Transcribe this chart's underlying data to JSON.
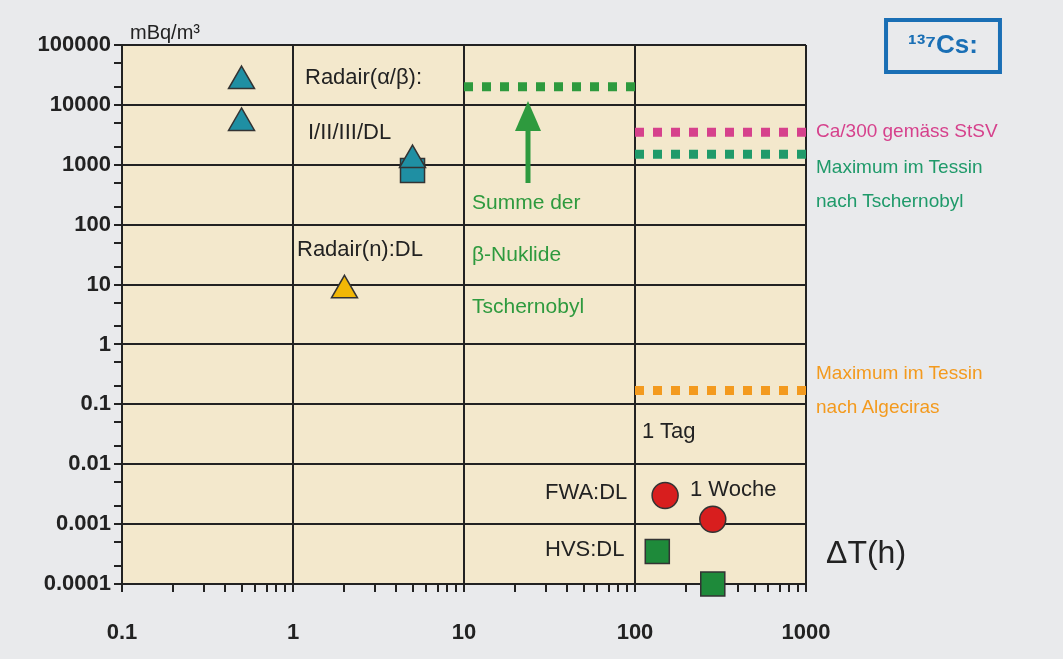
{
  "chart_data": {
    "type": "scatter",
    "title": "¹³⁷Cs:",
    "xlabel": "ΔT(h)",
    "ylabel": "mBq/m³",
    "log": "xy",
    "grid": true,
    "legend": false,
    "xlim": [
      0.1,
      1000
    ],
    "ylim": [
      0.0001,
      100000
    ],
    "xticks": [
      0.1,
      {
        "value": 0.2,
        "label": null
      },
      {
        "value": 0.3,
        "label": null
      },
      {
        "value": 0.4,
        "label": null
      },
      {
        "value": 0.5,
        "label": null
      },
      {
        "value": 0.6,
        "label": null
      },
      {
        "value": 0.7,
        "label": null
      },
      {
        "value": 0.8,
        "label": null
      },
      {
        "value": 0.9,
        "label": null
      },
      1,
      {
        "value": 2,
        "label": null
      },
      {
        "value": 3,
        "label": null
      },
      {
        "value": 4,
        "label": null
      },
      {
        "value": 5,
        "label": null
      },
      {
        "value": 6,
        "label": null
      },
      {
        "value": 7,
        "label": null
      },
      {
        "value": 8,
        "label": null
      },
      {
        "value": 9,
        "label": null
      },
      10,
      {
        "value": 20,
        "label": null
      },
      {
        "value": 30,
        "label": null
      },
      {
        "value": 40,
        "label": null
      },
      {
        "value": 50,
        "label": null
      },
      {
        "value": 60,
        "label": null
      },
      {
        "value": 70,
        "label": null
      },
      {
        "value": 80,
        "label": null
      },
      {
        "value": 90,
        "label": null
      },
      100,
      {
        "value": 200,
        "label": null
      },
      {
        "value": 300,
        "label": null
      },
      {
        "value": 400,
        "label": null
      },
      {
        "value": 500,
        "label": null
      },
      {
        "value": 600,
        "label": null
      },
      {
        "value": 700,
        "label": null
      },
      {
        "value": 800,
        "label": null
      },
      {
        "value": 900,
        "label": null
      },
      1000
    ],
    "yticks": [
      0.0001,
      {
        "value": 0.0002,
        "label": null
      },
      {
        "value": 0.0005,
        "label": null
      },
      0.001,
      {
        "value": 0.002,
        "label": null
      },
      {
        "value": 0.005,
        "label": null
      },
      0.01,
      {
        "value": 0.02,
        "label": null
      },
      {
        "value": 0.05,
        "label": null
      },
      0.1,
      {
        "value": 0.2,
        "label": null
      },
      {
        "value": 0.5,
        "label": null
      },
      1,
      {
        "value": 2,
        "label": null
      },
      {
        "value": 5,
        "label": null
      },
      10,
      {
        "value": 20,
        "label": null
      },
      {
        "value": 50,
        "label": null
      },
      100,
      {
        "value": 200,
        "label": null
      },
      {
        "value": 500,
        "label": null
      },
      1000,
      {
        "value": 2000,
        "label": null
      },
      {
        "value": 5000,
        "label": null
      },
      10000,
      {
        "value": 20000,
        "label": null
      },
      {
        "value": 50000,
        "label": null
      },
      100000
    ],
    "series": [
      {
        "type": "line",
        "name": "Summe der β-Nuklide Tschernobyl",
        "color": "#2e9a3e",
        "line_style": "dashed",
        "marker": "none",
        "x": [
          10,
          100
        ],
        "values": [
          20000,
          20000
        ]
      },
      {
        "type": "line",
        "name": "Ca/300 gemäss StSV",
        "color": "#d6418c",
        "line_style": "dashed",
        "marker": "none",
        "x": [
          100,
          1000
        ],
        "values": [
          3500,
          3500
        ]
      },
      {
        "type": "line",
        "name": "Maximum im Tessin nach Tschernobyl",
        "color": "#1f9a6a",
        "line_style": "dashed",
        "marker": "none",
        "x": [
          100,
          1000
        ],
        "values": [
          1500,
          1500
        ]
      },
      {
        "type": "line",
        "name": "Maximum im Tessin nach Algeciras",
        "color": "#f39a1e",
        "line_style": "dashed",
        "marker": "none",
        "x": [
          100,
          1000
        ],
        "values": [
          0.17,
          0.17
        ]
      },
      {
        "type": "scatter",
        "color": "#1f8fa3",
        "marker": "triangle",
        "x": [
          0.5,
          0.5
        ],
        "values": [
          25000,
          5000
        ]
      },
      {
        "type": "scatter",
        "color": "#1f8fa3",
        "marker": "square",
        "x": [
          5
        ],
        "values": [
          800
        ]
      },
      {
        "type": "scatter",
        "color": "#1f8fa3",
        "marker": "triangle",
        "x": [
          5
        ],
        "values": [
          1200
        ]
      },
      {
        "type": "scatter",
        "color": "#f2b705",
        "marker": "triangle",
        "x": [
          2
        ],
        "values": [
          8
        ]
      },
      {
        "type": "scatter",
        "color": "#d81e1e",
        "marker": "circle",
        "x": [
          150,
          285
        ],
        "values": [
          0.003,
          0.0012
        ]
      },
      {
        "type": "scatter",
        "color": "#1e8a3a",
        "marker": "square",
        "x": [
          135,
          285
        ],
        "values": [
          0.00035,
          0.0001
        ]
      }
    ],
    "annotations": [
      "Radair(α/β):",
      "I/II/III/DL",
      "Radair(n):DL",
      "1 Tag",
      "FWA:DL",
      "1 Woche",
      "HVS:DL"
    ]
  }
}
